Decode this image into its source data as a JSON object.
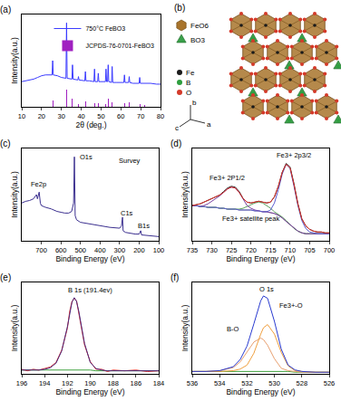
{
  "chart_data": [
    {
      "type": "line",
      "title": "(a)",
      "x_label": "2θ (deg.)",
      "y_label": "Intensity(a.u.)",
      "x": [
        10,
        12,
        14,
        16,
        18,
        20,
        22,
        24,
        25.3,
        25.6,
        25.9,
        28,
        30,
        32.3,
        32.6,
        32.9,
        35.3,
        35.6,
        35.9,
        38.3,
        38.6,
        38.9,
        41.8,
        42.1,
        42.4,
        44,
        46.4,
        46.7,
        47,
        48.3,
        48.6,
        48.9,
        50,
        52.2,
        52.5,
        52.8,
        53.3,
        53.6,
        53.9,
        55.3,
        55.6,
        55.9,
        58,
        60,
        61.5,
        61.8,
        62.1,
        63.9,
        64.2,
        64.5,
        66,
        69.2,
        69.5,
        69.8,
        72,
        75,
        78,
        80
      ],
      "series": [
        {
          "name": "750°C FeBO3",
          "color": "#3a3aff",
          "values": [
            30,
            31,
            32,
            33,
            35,
            37,
            38,
            38,
            38,
            55,
            38,
            37,
            35,
            34,
            100,
            34,
            33,
            50,
            33,
            32,
            36,
            32,
            31,
            42,
            31,
            31,
            30,
            45,
            30,
            30,
            40,
            30,
            30,
            30,
            45,
            30,
            30,
            50,
            30,
            29,
            48,
            29,
            29,
            29,
            29,
            38,
            29,
            29,
            36,
            29,
            28,
            28,
            35,
            28,
            28,
            28,
            27,
            27
          ]
        },
        {
          "name": "JCPDS-76-0701-FeBO3",
          "color": "#a020c0",
          "type": "bar",
          "x": [
            25.6,
            32.6,
            35.6,
            38.4,
            42.1,
            46.8,
            48.7,
            52.3,
            53.7,
            55.5,
            61.9,
            64.1,
            69.5,
            72
          ],
          "values": [
            8,
            20,
            10,
            3,
            7,
            4,
            4,
            3,
            10,
            5,
            4,
            5,
            3,
            2
          ]
        }
      ],
      "xlim": [
        10,
        80
      ],
      "xticks": [
        10,
        20,
        30,
        40,
        50,
        60,
        70,
        80
      ],
      "ylim": [
        0,
        110
      ],
      "tick_labels": "x",
      "legend": "upper right"
    },
    {
      "type": "diagram",
      "title": "(b)",
      "polyhedra": [
        {
          "label": "FeO6",
          "color": "#a8742c"
        },
        {
          "label": "BO3",
          "color": "#3aa04a"
        }
      ],
      "atoms": [
        {
          "label": "Fe",
          "color": "#1a1a1a"
        },
        {
          "label": "B",
          "color": "#2e9e3e"
        },
        {
          "label": "O",
          "color": "#d43a2a"
        }
      ],
      "axes": [
        "c",
        "b",
        "a"
      ]
    },
    {
      "type": "line",
      "title": "(c)",
      "x_label": "Binding Energy (eV)",
      "y_label": "Intensity(a.u.)",
      "x": [
        800,
        780,
        760,
        740,
        725,
        720,
        711,
        705,
        700,
        680,
        650,
        620,
        600,
        580,
        560,
        545,
        535,
        531,
        527,
        520,
        500,
        450,
        400,
        350,
        300,
        290,
        285,
        282,
        270,
        250,
        220,
        200,
        192,
        188,
        150,
        100
      ],
      "series": [
        {
          "color": "#3b2f8f",
          "values": [
            45,
            47,
            48,
            50,
            55,
            50,
            58,
            45,
            42,
            40,
            38,
            35,
            34,
            33,
            33,
            35,
            45,
            100,
            30,
            25,
            22,
            20,
            18,
            16,
            15,
            18,
            28,
            12,
            10,
            9,
            8,
            8,
            12,
            7,
            6,
            5
          ]
        }
      ],
      "annotations": [
        {
          "text": "Survey",
          "x": 250,
          "y": 95
        },
        {
          "text": "O1s",
          "x": 470,
          "y": 100
        },
        {
          "text": "Fe2p",
          "x": 715,
          "y": 67
        },
        {
          "text": "C1s",
          "x": 260,
          "y": 33
        },
        {
          "text": "B1s",
          "x": 175,
          "y": 18
        }
      ],
      "xlim": [
        800,
        100
      ],
      "xticks": [
        700,
        600,
        500,
        400,
        300,
        200,
        100
      ],
      "ylim": [
        0,
        110
      ],
      "tick_labels": "x"
    },
    {
      "type": "line",
      "title": "(d)",
      "x_label": "Binding Energy (eV)",
      "y_label": "Intensity(a.u.)",
      "x": [
        735,
        734,
        733,
        732,
        731,
        730,
        729,
        728,
        727,
        726,
        725,
        724,
        723,
        722,
        721,
        720,
        719,
        718,
        717,
        716,
        715,
        714,
        713,
        712,
        711,
        710,
        709,
        708,
        707,
        706,
        705,
        704,
        703,
        702,
        701,
        700
      ],
      "series": [
        {
          "color": "#888888",
          "values": [
            40,
            40,
            39,
            39,
            38,
            38,
            38,
            37,
            37,
            36,
            36,
            36,
            35,
            35,
            35,
            35,
            34,
            34,
            33,
            33,
            32,
            31,
            29,
            26,
            22,
            18,
            14,
            11,
            9,
            8,
            8,
            8,
            8,
            8,
            8,
            8
          ]
        },
        {
          "color": "#5aa05a",
          "values": [
            40,
            40,
            39,
            39,
            38,
            38,
            38,
            37,
            37,
            36,
            36,
            36,
            36,
            37,
            39,
            41,
            43,
            44,
            43,
            40,
            37,
            33,
            30,
            27,
            23,
            18,
            14,
            11,
            9,
            8,
            8,
            8,
            8,
            8,
            8,
            8
          ]
        },
        {
          "color": "#7a3fa0",
          "values": [
            40,
            40,
            39,
            40,
            42,
            45,
            48,
            51,
            55,
            59,
            61,
            60,
            55,
            47,
            40,
            37,
            35,
            34,
            33,
            33,
            32,
            31,
            29,
            26,
            22,
            18,
            14,
            11,
            9,
            8,
            8,
            8,
            8,
            8,
            8,
            8
          ]
        },
        {
          "color": "#5a5ad0",
          "values": [
            40,
            40,
            39,
            39,
            38,
            38,
            38,
            37,
            37,
            36,
            36,
            36,
            35,
            35,
            35,
            35,
            34,
            34,
            33,
            33,
            35,
            43,
            58,
            76,
            87,
            82,
            62,
            40,
            23,
            14,
            10,
            9,
            8,
            8,
            8,
            8
          ]
        },
        {
          "color": "#2b2b2b",
          "values": [
            40,
            41,
            42,
            44,
            46,
            48,
            50,
            52,
            56,
            60,
            62,
            61,
            56,
            48,
            44,
            43,
            44,
            45,
            44,
            43,
            44,
            50,
            62,
            78,
            88,
            84,
            65,
            42,
            25,
            17,
            13,
            11,
            10,
            10,
            9,
            9
          ]
        },
        {
          "color": "#e0302a",
          "values": [
            40,
            41,
            42,
            44,
            46,
            48,
            50,
            52,
            55,
            59,
            61,
            60,
            55,
            48,
            44,
            43,
            44,
            45,
            44,
            43,
            44,
            50,
            62,
            78,
            87,
            83,
            64,
            42,
            25,
            17,
            13,
            11,
            10,
            10,
            9,
            9
          ]
        }
      ],
      "annotations": [
        {
          "text": "Fe3+ 2P1/2",
          "x": 726,
          "y": 72
        },
        {
          "text": "Fe3+ 2p3/2",
          "x": 709,
          "y": 97
        },
        {
          "text": "Fe3+ satellite peak",
          "x": 720,
          "y": 25
        }
      ],
      "xlim": [
        735,
        700
      ],
      "xticks": [
        735,
        730,
        725,
        720,
        715,
        710,
        705,
        700
      ],
      "ylim": [
        0,
        105
      ],
      "tick_labels": "x"
    },
    {
      "type": "line",
      "title": "(e)",
      "x_label": "Binding Energy (eV)",
      "y_label": "Intensity(a.u.)",
      "x": [
        196,
        195.5,
        195,
        194.5,
        194,
        193.5,
        193,
        192.5,
        192,
        191.8,
        191.6,
        191.4,
        191.2,
        191,
        190.8,
        190.5,
        190,
        189.5,
        189,
        188.5,
        188,
        187,
        186,
        185,
        184
      ],
      "series": [
        {
          "color": "#3ca03c",
          "values": [
            5,
            5,
            5,
            5,
            5,
            5,
            5,
            5,
            5,
            5,
            5,
            5,
            5,
            5,
            5,
            5,
            5,
            4,
            4,
            4,
            4,
            4,
            4,
            4,
            4
          ]
        },
        {
          "color": "#e03030",
          "values": [
            6,
            4,
            6,
            5,
            7,
            9,
            15,
            31,
            60,
            82,
            95,
            99,
            96,
            80,
            66,
            38,
            16,
            6,
            6,
            3,
            5,
            4,
            5,
            3,
            4
          ]
        },
        {
          "color": "#4b2a7d",
          "values": [
            5,
            5,
            5,
            5,
            6,
            8,
            14,
            30,
            62,
            80,
            94,
            100,
            95,
            82,
            64,
            40,
            15,
            7,
            5,
            4,
            4,
            4,
            4,
            4,
            4
          ]
        }
      ],
      "annotations": [
        {
          "text": "B 1s (191.4ev)",
          "x": 190,
          "y": 110
        }
      ],
      "xlim": [
        196,
        184
      ],
      "xticks": [
        196,
        194,
        192,
        190,
        188,
        186,
        184
      ],
      "ylim": [
        0,
        120
      ],
      "tick_labels": "x"
    },
    {
      "type": "line",
      "title": "(f)",
      "x_label": "Binding Energy (eV)",
      "y_label": "Intensity(a.u.)",
      "x": [
        536,
        535,
        534,
        533,
        532.5,
        532,
        531.5,
        531,
        530.8,
        530.5,
        530,
        529.5,
        529,
        528.5,
        528,
        527,
        526
      ],
      "series": [
        {
          "color": "#3ca03c",
          "values": [
            3,
            3,
            3,
            3,
            3,
            3,
            3,
            3,
            3,
            3,
            3,
            3,
            3,
            2,
            2,
            2,
            2
          ]
        },
        {
          "color": "#e8a070",
          "values": [
            3,
            3,
            4,
            8,
            15,
            27,
            40,
            45,
            43,
            36,
            19,
            7,
            4,
            3,
            2,
            2,
            2
          ]
        },
        {
          "color": "#f0a040",
          "values": [
            3,
            3,
            3,
            4,
            6,
            11,
            26,
            50,
            58,
            62,
            50,
            27,
            10,
            4,
            3,
            2,
            2
          ]
        },
        {
          "color": "#2a3bd0",
          "values": [
            3,
            3,
            4,
            9,
            18,
            35,
            63,
            92,
            98,
            95,
            66,
            31,
            11,
            5,
            3,
            2,
            2
          ]
        }
      ],
      "annotations": [
        {
          "text": "O 1s",
          "x": 530.6,
          "y": 107
        },
        {
          "text": "Fe3+-O",
          "x": 528.8,
          "y": 86
        },
        {
          "text": "B-O",
          "x": 533,
          "y": 56
        }
      ],
      "xlim": [
        536,
        526
      ],
      "xticks": [
        536,
        534,
        532,
        530,
        528,
        526
      ],
      "ylim": [
        0,
        115
      ],
      "tick_labels": "x"
    }
  ]
}
